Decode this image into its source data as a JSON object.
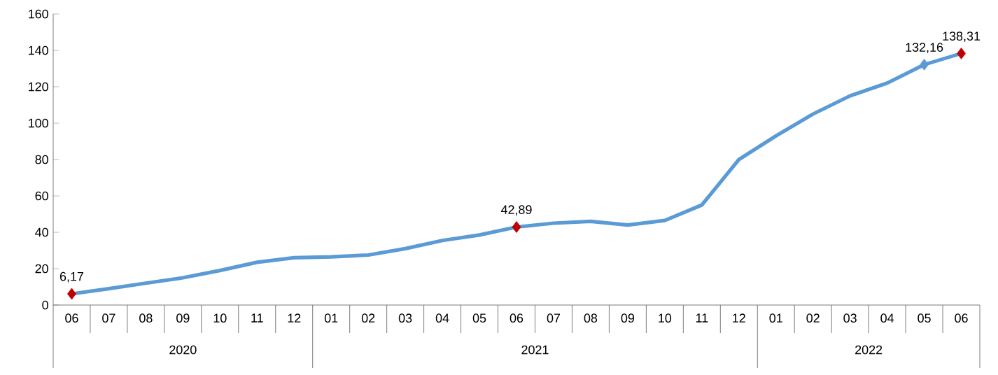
{
  "chart_data": {
    "type": "line",
    "categories": [
      "06",
      "07",
      "08",
      "09",
      "10",
      "11",
      "12",
      "01",
      "02",
      "03",
      "04",
      "05",
      "06",
      "07",
      "08",
      "09",
      "10",
      "11",
      "12",
      "01",
      "02",
      "03",
      "04",
      "05",
      "06"
    ],
    "values": [
      6.17,
      9,
      12,
      15,
      19,
      23.5,
      26,
      26.5,
      27.5,
      31,
      35.5,
      38.5,
      42.89,
      45,
      46,
      44,
      46.5,
      55,
      80,
      93,
      105,
      115,
      122,
      132.16,
      138.31
    ],
    "value_labels": [
      "6,17",
      null,
      null,
      null,
      null,
      null,
      null,
      null,
      null,
      null,
      null,
      null,
      "42,89",
      null,
      null,
      null,
      null,
      null,
      null,
      null,
      null,
      null,
      null,
      "132,16",
      "138,31"
    ],
    "color": "#5b9bd5",
    "colors": [
      "#c00000",
      null,
      null,
      null,
      null,
      null,
      null,
      null,
      null,
      null,
      null,
      null,
      "#c00000",
      null,
      null,
      null,
      null,
      null,
      null,
      null,
      null,
      null,
      null,
      "#5b9bd5",
      "#c00000"
    ],
    "ylim": [
      0,
      160
    ],
    "yticks": [
      0,
      20,
      40,
      60,
      80,
      100,
      120,
      140,
      160
    ],
    "annotations": [
      "2020",
      "2021",
      "2022"
    ]
  }
}
